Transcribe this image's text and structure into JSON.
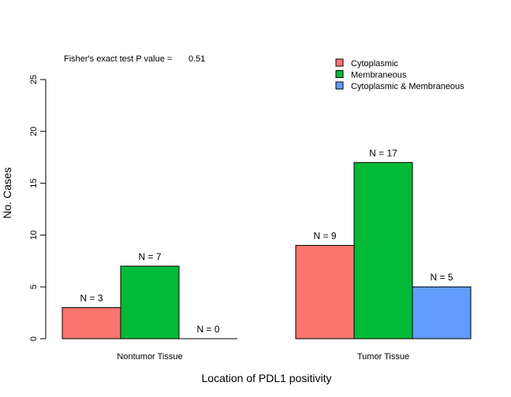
{
  "chart_data": {
    "type": "bar",
    "title": "",
    "xlabel": "Location of PDL1 positivity",
    "ylabel": "No. Cases",
    "ylim": [
      0,
      25
    ],
    "yticks": [
      0,
      5,
      10,
      15,
      20,
      25
    ],
    "grid": false,
    "legend_position": "top-right",
    "annotation": {
      "label": "Fisher's exact test P value =",
      "value": "0.51"
    },
    "categories": [
      "Nontumor Tissue",
      "Tumor Tissue"
    ],
    "series": [
      {
        "name": "Cytoplasmic",
        "color": "#F8766D",
        "values": [
          3,
          9
        ],
        "labels": [
          "N = 3",
          "N = 9"
        ]
      },
      {
        "name": "Membraneous",
        "color": "#00BA38",
        "values": [
          7,
          17
        ],
        "labels": [
          "N = 7",
          "N = 17"
        ]
      },
      {
        "name": "Cytoplasmic & Membraneous",
        "color": "#619CFF",
        "values": [
          0,
          5
        ],
        "labels": [
          "N = 0",
          "N = 5"
        ]
      }
    ]
  }
}
